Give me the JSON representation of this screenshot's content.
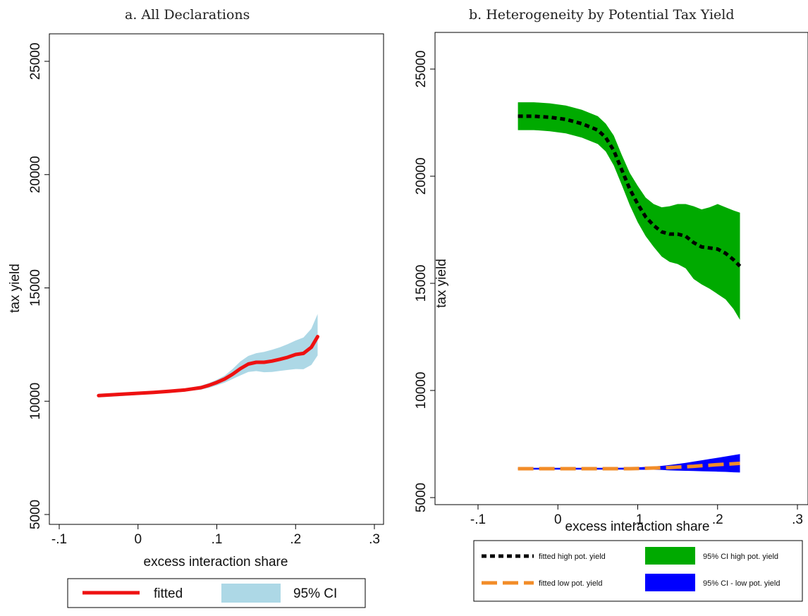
{
  "chart_data": [
    {
      "type": "line",
      "title": "a. All Declarations",
      "xlabel": "excess interaction share",
      "ylabel": "tax yield",
      "xlim": [
        -0.1,
        0.3
      ],
      "ylim": [
        5000,
        25000
      ],
      "xticks": [
        -0.1,
        0,
        0.1,
        0.2,
        0.3
      ],
      "xtick_labels": [
        "-.1",
        "0",
        ".1",
        ".2",
        ".3"
      ],
      "yticks": [
        5000,
        10000,
        15000,
        20000,
        25000
      ],
      "ytick_labels": [
        "5000",
        "10000",
        "15000",
        "20000",
        "25000"
      ],
      "grid": false,
      "legend_position": "bottom",
      "colors": {
        "fitted": "#ee1111",
        "ci": "#add8e6"
      },
      "x": [
        -0.05,
        -0.02,
        0.0,
        0.02,
        0.04,
        0.06,
        0.08,
        0.09,
        0.1,
        0.11,
        0.12,
        0.13,
        0.14,
        0.15,
        0.16,
        0.17,
        0.18,
        0.19,
        0.2,
        0.21,
        0.22,
        0.228
      ],
      "series": [
        {
          "name": "fitted",
          "values": [
            10250,
            10310,
            10350,
            10390,
            10440,
            10500,
            10600,
            10700,
            10830,
            10980,
            11190,
            11440,
            11640,
            11720,
            11720,
            11770,
            11850,
            11940,
            12060,
            12110,
            12380,
            12850
          ]
        },
        {
          "name": "95% CI",
          "upper": [
            10330,
            10380,
            10410,
            10440,
            10490,
            10560,
            10690,
            10800,
            10950,
            11130,
            11420,
            11760,
            12000,
            12120,
            12180,
            12270,
            12380,
            12520,
            12680,
            12810,
            13200,
            13850
          ],
          "lower": [
            10170,
            10230,
            10280,
            10330,
            10380,
            10440,
            10510,
            10590,
            10700,
            10820,
            10980,
            11140,
            11290,
            11330,
            11280,
            11290,
            11340,
            11380,
            11420,
            11410,
            11600,
            12020
          ]
        }
      ]
    },
    {
      "type": "line",
      "title": "b. Heterogeneity by Potential Tax Yield",
      "xlabel": "excess interaction share",
      "ylabel": "tax yield",
      "xlim": [
        -0.1,
        0.3
      ],
      "ylim": [
        5000,
        25000
      ],
      "xticks": [
        -0.1,
        0,
        0.1,
        0.2,
        0.3
      ],
      "xtick_labels": [
        "-.1",
        "0",
        ".1",
        ".2",
        ".3"
      ],
      "yticks": [
        5000,
        10000,
        15000,
        20000,
        25000
      ],
      "ytick_labels": [
        "5000",
        "10000",
        "15000",
        "20000",
        "25000"
      ],
      "grid": false,
      "legend_position": "bottom",
      "colors": {
        "high_fit": "#000000",
        "low_fit": "#f28c28",
        "high_ci": "#00aa00",
        "low_ci": "#0000ff"
      },
      "x": [
        -0.05,
        -0.03,
        -0.01,
        0.01,
        0.03,
        0.05,
        0.06,
        0.07,
        0.08,
        0.09,
        0.1,
        0.11,
        0.12,
        0.13,
        0.14,
        0.15,
        0.16,
        0.17,
        0.18,
        0.19,
        0.2,
        0.21,
        0.22,
        0.228
      ],
      "series": [
        {
          "name": "fitted high pot. yield",
          "values": [
            22800,
            22800,
            22750,
            22650,
            22450,
            22150,
            21800,
            21200,
            20300,
            19400,
            18700,
            18100,
            17700,
            17400,
            17300,
            17300,
            17200,
            16900,
            16700,
            16650,
            16600,
            16400,
            16100,
            15800
          ]
        },
        {
          "name": "95% CI high pot. yield",
          "upper": [
            23450,
            23450,
            23400,
            23300,
            23100,
            22800,
            22450,
            21900,
            21000,
            20150,
            19550,
            19000,
            18700,
            18550,
            18600,
            18700,
            18700,
            18600,
            18450,
            18550,
            18700,
            18550,
            18400,
            18300
          ],
          "lower": [
            22150,
            22150,
            22100,
            22000,
            21800,
            21500,
            21150,
            20500,
            19600,
            18650,
            17850,
            17200,
            16700,
            16250,
            16000,
            15900,
            15700,
            15200,
            14950,
            14750,
            14500,
            14250,
            13800,
            13300
          ]
        },
        {
          "name": "fitted low pot. yield",
          "values": [
            6350,
            6350,
            6350,
            6350,
            6350,
            6350,
            6350,
            6350,
            6350,
            6350,
            6360,
            6370,
            6380,
            6390,
            6400,
            6420,
            6440,
            6460,
            6490,
            6510,
            6540,
            6560,
            6580,
            6600
          ]
        },
        {
          "name": "95% CI - low pot. yield",
          "upper": [
            6390,
            6390,
            6390,
            6390,
            6390,
            6390,
            6390,
            6390,
            6395,
            6400,
            6410,
            6430,
            6450,
            6480,
            6520,
            6570,
            6620,
            6680,
            6740,
            6800,
            6860,
            6920,
            6980,
            7030
          ],
          "lower": [
            6310,
            6310,
            6310,
            6310,
            6310,
            6310,
            6310,
            6310,
            6305,
            6300,
            6300,
            6300,
            6300,
            6290,
            6270,
            6260,
            6250,
            6240,
            6230,
            6220,
            6210,
            6200,
            6180,
            6170
          ]
        }
      ]
    }
  ]
}
